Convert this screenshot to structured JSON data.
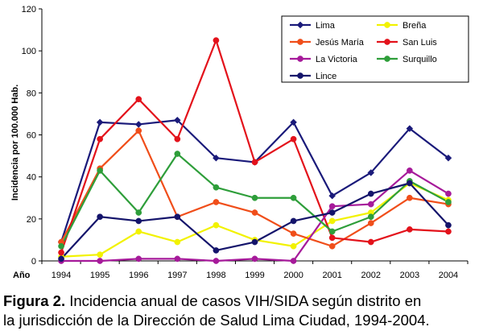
{
  "chart_data": {
    "type": "line",
    "ylabel": "Incidencia por 100.000 Hab.",
    "xlabel": "Año",
    "ylim": [
      0,
      120
    ],
    "yticks": [
      0,
      20,
      40,
      60,
      80,
      100,
      120
    ],
    "categories": [
      "1994",
      "1995",
      "1996",
      "1997",
      "1998",
      "1999",
      "2000",
      "2001",
      "2002",
      "2003",
      "2004"
    ],
    "grid": false,
    "legend_position": "top-right",
    "series": [
      {
        "name": "Lima",
        "color": "#1a1a7a",
        "marker": "diamond",
        "values": [
          9,
          66,
          65,
          67,
          49,
          47,
          66,
          31,
          42,
          63,
          49
        ]
      },
      {
        "name": "Breña",
        "color": "#f2f200",
        "marker": "circle",
        "values": [
          2,
          3,
          14,
          9,
          17,
          10,
          7,
          19,
          23,
          37,
          29
        ]
      },
      {
        "name": "Jesús María",
        "color": "#f04e1a",
        "marker": "circle",
        "values": [
          9,
          44,
          62,
          21,
          28,
          23,
          13,
          7,
          18,
          30,
          27
        ]
      },
      {
        "name": "San Luis",
        "color": "#e3121b",
        "marker": "circle",
        "values": [
          4,
          58,
          77,
          58,
          105,
          47,
          58,
          11,
          9,
          15,
          14
        ]
      },
      {
        "name": "La Victoria",
        "color": "#a61a9a",
        "marker": "circle",
        "values": [
          0,
          0,
          1,
          1,
          0,
          1,
          0,
          26,
          27,
          43,
          32
        ]
      },
      {
        "name": "Surquillo",
        "color": "#2e9e3a",
        "marker": "circle",
        "values": [
          7,
          43,
          23,
          51,
          35,
          30,
          30,
          14,
          21,
          38,
          28
        ]
      },
      {
        "name": "Lince",
        "color": "#14146b",
        "marker": "circle",
        "values": [
          1,
          21,
          19,
          21,
          5,
          9,
          19,
          23,
          32,
          37,
          17
        ]
      }
    ]
  },
  "caption": {
    "figure_label": "Figura 2.",
    "line1_text": " Incidencia anual de casos VIH/SIDA según distrito en",
    "line2_text": "la jurisdicción de la Dirección de Salud Lima Ciudad, 1994-2004."
  }
}
